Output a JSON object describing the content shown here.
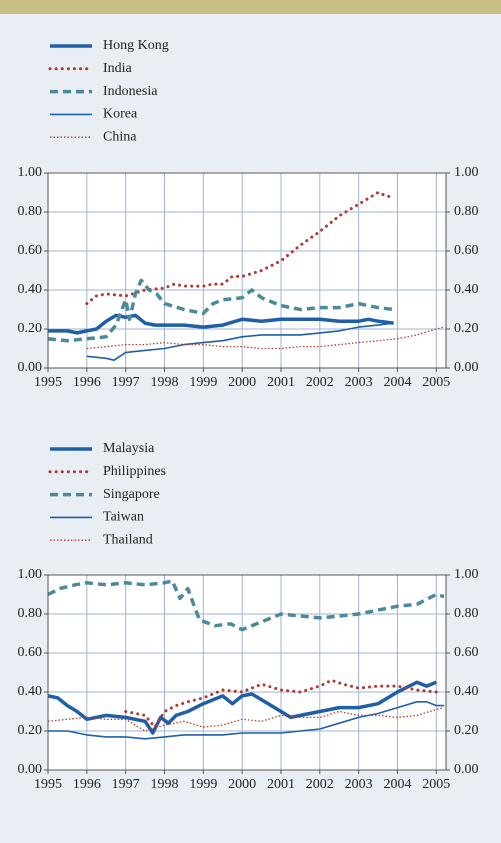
{
  "chart_data": [
    {
      "type": "line",
      "xlim": [
        1995,
        2005.25
      ],
      "xticks": [
        1995,
        1996,
        1997,
        1998,
        1999,
        2000,
        2001,
        2002,
        2003,
        2004,
        2005
      ],
      "ylim": [
        0,
        1
      ],
      "yticks": [
        {
          "value": 0,
          "label": "0.00"
        },
        {
          "value": 0.2,
          "label": "0.20"
        },
        {
          "value": 0.4,
          "label": "0.40"
        },
        {
          "value": 0.6,
          "label": "0.60"
        },
        {
          "value": 0.8,
          "label": "0.80"
        },
        {
          "value": 1,
          "label": "1.00"
        }
      ],
      "grid": true,
      "series": [
        {
          "name": "Hong Kong",
          "color": "#1f5fa8",
          "style": "thick",
          "x": [
            1995,
            1995.5,
            1995.75,
            1996,
            1996.25,
            1996.5,
            1996.75,
            1997,
            1997.25,
            1997.5,
            1997.75,
            1998,
            1998.5,
            1999,
            1999.5,
            2000,
            2000.5,
            2001,
            2001.5,
            2002,
            2002.5,
            2003,
            2003.25,
            2003.5,
            2003.9
          ],
          "values": [
            0.19,
            0.19,
            0.18,
            0.19,
            0.2,
            0.24,
            0.27,
            0.26,
            0.27,
            0.23,
            0.22,
            0.22,
            0.22,
            0.21,
            0.22,
            0.25,
            0.24,
            0.25,
            0.25,
            0.25,
            0.24,
            0.24,
            0.25,
            0.24,
            0.23
          ]
        },
        {
          "name": "India",
          "color": "#b03a2e",
          "style": "dotted",
          "x": [
            1996,
            1996.25,
            1996.5,
            1997,
            1997.5,
            1998,
            1998.25,
            1998.5,
            1999,
            1999.25,
            1999.5,
            1999.75,
            2000,
            2000.5,
            2001,
            2001.5,
            2002,
            2002.5,
            2003,
            2003.25,
            2003.5,
            2003.75,
            2003.9
          ],
          "values": [
            0.33,
            0.37,
            0.38,
            0.37,
            0.4,
            0.41,
            0.43,
            0.42,
            0.42,
            0.43,
            0.43,
            0.47,
            0.47,
            0.5,
            0.55,
            0.63,
            0.7,
            0.78,
            0.84,
            0.87,
            0.9,
            0.88,
            0.88
          ]
        },
        {
          "name": "Indonesia",
          "color": "#4a8a9a",
          "style": "dashed",
          "x": [
            1995,
            1995.5,
            1996,
            1996.5,
            1996.75,
            1997,
            1997.1,
            1997.25,
            1997.4,
            1997.6,
            1997.8,
            1998,
            1998.5,
            1999,
            1999.25,
            1999.5,
            2000,
            2000.25,
            2000.5,
            2001,
            2001.5,
            2002,
            2002.5,
            2003,
            2003.5,
            2003.9
          ],
          "values": [
            0.15,
            0.14,
            0.15,
            0.16,
            0.22,
            0.35,
            0.25,
            0.38,
            0.45,
            0.4,
            0.38,
            0.33,
            0.3,
            0.28,
            0.33,
            0.35,
            0.36,
            0.4,
            0.36,
            0.32,
            0.3,
            0.31,
            0.31,
            0.33,
            0.31,
            0.3
          ]
        },
        {
          "name": "Korea",
          "color": "#1f5fa8",
          "style": "thin",
          "x": [
            1996,
            1996.5,
            1996.7,
            1997,
            1997.5,
            1998,
            1998.5,
            1999,
            1999.5,
            2000,
            2000.5,
            2001,
            2001.5,
            2002,
            2002.5,
            2003,
            2003.5,
            2003.9
          ],
          "values": [
            0.06,
            0.05,
            0.04,
            0.08,
            0.09,
            0.1,
            0.12,
            0.13,
            0.14,
            0.16,
            0.17,
            0.17,
            0.17,
            0.18,
            0.19,
            0.21,
            0.22,
            0.23
          ]
        },
        {
          "name": "China",
          "color": "#b03a2e",
          "style": "dotted-thin",
          "x": [
            1996,
            1996.5,
            1997,
            1997.5,
            1998,
            1998.5,
            1999,
            1999.5,
            2000,
            2000.5,
            2001,
            2001.5,
            2002,
            2002.5,
            2003,
            2003.5,
            2004,
            2004.5,
            2005,
            2005.2
          ],
          "values": [
            0.1,
            0.11,
            0.12,
            0.12,
            0.13,
            0.12,
            0.12,
            0.11,
            0.11,
            0.1,
            0.1,
            0.11,
            0.11,
            0.12,
            0.13,
            0.14,
            0.15,
            0.17,
            0.2,
            0.21
          ]
        }
      ]
    },
    {
      "type": "line",
      "xlim": [
        1995,
        2005.25
      ],
      "xticks": [
        1995,
        1996,
        1997,
        1998,
        1999,
        2000,
        2001,
        2002,
        2003,
        2004,
        2005
      ],
      "ylim": [
        0,
        1
      ],
      "yticks": [
        {
          "value": 0,
          "label": "0.00"
        },
        {
          "value": 0.2,
          "label": "0.20"
        },
        {
          "value": 0.4,
          "label": "0.40"
        },
        {
          "value": 0.6,
          "label": "0.60"
        },
        {
          "value": 0.8,
          "label": "0.80"
        },
        {
          "value": 1,
          "label": "1.00"
        }
      ],
      "grid": true,
      "series": [
        {
          "name": "Malaysia",
          "color": "#1f5fa8",
          "style": "thick",
          "x": [
            1995,
            1995.25,
            1995.5,
            1995.75,
            1996,
            1996.5,
            1997,
            1997.5,
            1997.7,
            1997.9,
            1998.1,
            1998.3,
            1998.6,
            1999,
            1999.5,
            1999.75,
            2000,
            2000.25,
            2000.5,
            2001,
            2001.25,
            2001.5,
            2002,
            2002.5,
            2003,
            2003.5,
            2004,
            2004.5,
            2004.75,
            2005
          ],
          "values": [
            0.38,
            0.37,
            0.33,
            0.3,
            0.26,
            0.28,
            0.27,
            0.25,
            0.19,
            0.27,
            0.24,
            0.28,
            0.3,
            0.34,
            0.38,
            0.34,
            0.38,
            0.39,
            0.36,
            0.3,
            0.27,
            0.28,
            0.3,
            0.32,
            0.32,
            0.34,
            0.4,
            0.45,
            0.43,
            0.45
          ]
        },
        {
          "name": "Philippines",
          "color": "#b03a2e",
          "style": "dotted",
          "x": [
            1997,
            1997.5,
            1997.75,
            1998,
            1998.3,
            1998.6,
            1999,
            1999.5,
            2000,
            2000.5,
            2001,
            2001.5,
            2002,
            2002.3,
            2002.6,
            2003,
            2003.5,
            2004,
            2004.5,
            2005
          ],
          "values": [
            0.3,
            0.28,
            0.22,
            0.3,
            0.33,
            0.35,
            0.37,
            0.41,
            0.4,
            0.44,
            0.41,
            0.4,
            0.43,
            0.46,
            0.44,
            0.42,
            0.43,
            0.43,
            0.41,
            0.4
          ]
        },
        {
          "name": "Singapore",
          "color": "#4a8a9a",
          "style": "dashed",
          "x": [
            1995,
            1995.3,
            1995.7,
            1996,
            1996.5,
            1997,
            1997.5,
            1998,
            1998.2,
            1998.4,
            1998.6,
            1998.9,
            1999.3,
            1999.7,
            2000,
            2000.5,
            2001,
            2001.5,
            2002,
            2002.5,
            2003,
            2003.5,
            2004,
            2004.5,
            2005,
            2005.2
          ],
          "values": [
            0.9,
            0.93,
            0.95,
            0.96,
            0.95,
            0.96,
            0.95,
            0.96,
            0.97,
            0.88,
            0.93,
            0.77,
            0.74,
            0.75,
            0.72,
            0.76,
            0.8,
            0.79,
            0.78,
            0.79,
            0.8,
            0.82,
            0.84,
            0.85,
            0.9,
            0.89
          ]
        },
        {
          "name": "Taiwan",
          "color": "#1f5fa8",
          "style": "thin",
          "x": [
            1995,
            1995.5,
            1996,
            1996.5,
            1997,
            1997.5,
            1998,
            1998.5,
            1999,
            1999.5,
            2000,
            2000.5,
            2001,
            2001.5,
            2002,
            2002.5,
            2003,
            2003.5,
            2004,
            2004.5,
            2004.75,
            2005,
            2005.2
          ],
          "values": [
            0.2,
            0.2,
            0.18,
            0.17,
            0.17,
            0.16,
            0.17,
            0.18,
            0.18,
            0.18,
            0.19,
            0.19,
            0.19,
            0.2,
            0.21,
            0.24,
            0.27,
            0.29,
            0.32,
            0.35,
            0.35,
            0.33,
            0.33
          ]
        },
        {
          "name": "Thailand",
          "color": "#b03a2e",
          "style": "dotted-thin",
          "x": [
            1995,
            1995.5,
            1996,
            1996.5,
            1997,
            1997.5,
            1998,
            1998.5,
            1999,
            1999.5,
            2000,
            2000.5,
            2001,
            2001.5,
            2002,
            2002.5,
            2003,
            2003.5,
            2004,
            2004.5,
            2005,
            2005.2
          ],
          "values": [
            0.25,
            0.26,
            0.27,
            0.26,
            0.26,
            0.2,
            0.23,
            0.25,
            0.22,
            0.23,
            0.26,
            0.25,
            0.28,
            0.27,
            0.27,
            0.3,
            0.28,
            0.28,
            0.27,
            0.28,
            0.31,
            0.32
          ]
        }
      ]
    }
  ]
}
